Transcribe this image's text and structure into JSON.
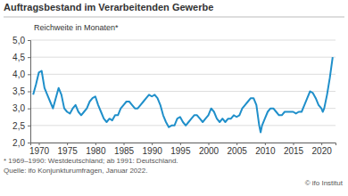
{
  "chart_data": {
    "type": "line",
    "title": "Auftragsbestand im Verarbeitenden Gewerbe",
    "y_label": "Reichweite in Monaten*",
    "annotations": [
      "* 1969–1990: Westdeutschland; ab 1991: Deutschland.",
      "Quelle: ifo Konjunkturumfragen, Januar 2022.",
      "© ifo Institut"
    ],
    "color": "#1f8fca",
    "grid": true,
    "xlim": [
      1968.5,
      2022.5
    ],
    "xticks": [
      1970,
      1975,
      1980,
      1985,
      1990,
      1995,
      2000,
      2005,
      2010,
      2015,
      2020
    ],
    "ylim": [
      2,
      5
    ],
    "yticks": [
      {
        "value": 2,
        "label": "2,0"
      },
      {
        "value": 2.5,
        "label": "2,5"
      },
      {
        "value": 3,
        "label": "3,0"
      },
      {
        "value": 3.5,
        "label": "3,5"
      },
      {
        "value": 4,
        "label": "4,0"
      },
      {
        "value": 4.5,
        "label": "4,5"
      },
      {
        "value": 5,
        "label": "5,0"
      }
    ],
    "x": [
      1969.0,
      1969.5,
      1970.0,
      1970.5,
      1971.0,
      1971.5,
      1972.0,
      1972.5,
      1973.0,
      1973.5,
      1974.0,
      1974.5,
      1975.0,
      1975.5,
      1976.0,
      1976.5,
      1977.0,
      1977.5,
      1978.0,
      1978.5,
      1979.0,
      1979.5,
      1980.0,
      1980.5,
      1981.0,
      1981.5,
      1982.0,
      1982.5,
      1983.0,
      1983.5,
      1984.0,
      1984.5,
      1985.0,
      1985.5,
      1986.0,
      1986.5,
      1987.0,
      1987.5,
      1988.0,
      1988.5,
      1989.0,
      1989.5,
      1990.0,
      1990.5,
      1991.0,
      1991.5,
      1992.0,
      1992.5,
      1993.0,
      1993.5,
      1994.0,
      1994.5,
      1995.0,
      1995.5,
      1996.0,
      1996.5,
      1997.0,
      1997.5,
      1998.0,
      1998.5,
      1999.0,
      1999.5,
      2000.0,
      2000.5,
      2001.0,
      2001.5,
      2002.0,
      2002.5,
      2003.0,
      2003.5,
      2004.0,
      2004.5,
      2005.0,
      2005.5,
      2006.0,
      2006.5,
      2007.0,
      2007.5,
      2008.0,
      2008.5,
      2009.0,
      2009.25,
      2009.5,
      2010.0,
      2010.5,
      2011.0,
      2011.5,
      2012.0,
      2012.5,
      2013.0,
      2013.5,
      2014.0,
      2014.5,
      2015.0,
      2015.5,
      2016.0,
      2016.5,
      2017.0,
      2017.5,
      2018.0,
      2018.5,
      2019.0,
      2019.5,
      2020.0,
      2020.25,
      2020.5,
      2021.0,
      2021.5,
      2021.75,
      2022.0
    ],
    "values": [
      3.4,
      3.7,
      4.05,
      4.1,
      3.6,
      3.4,
      3.2,
      3.0,
      3.3,
      3.6,
      3.4,
      3.0,
      2.9,
      2.85,
      3.0,
      3.1,
      2.9,
      2.8,
      2.9,
      3.0,
      3.2,
      3.3,
      3.35,
      3.1,
      2.9,
      2.7,
      2.6,
      2.7,
      2.65,
      2.8,
      2.8,
      3.0,
      3.1,
      3.2,
      3.2,
      3.1,
      3.0,
      3.0,
      3.1,
      3.2,
      3.3,
      3.4,
      3.35,
      3.4,
      3.3,
      3.1,
      2.8,
      2.6,
      2.45,
      2.5,
      2.5,
      2.7,
      2.75,
      2.6,
      2.5,
      2.6,
      2.7,
      2.8,
      2.8,
      2.7,
      2.6,
      2.7,
      2.8,
      3.0,
      2.9,
      2.7,
      2.6,
      2.7,
      2.6,
      2.7,
      2.7,
      2.8,
      2.75,
      2.8,
      3.0,
      3.1,
      3.2,
      3.3,
      3.3,
      3.1,
      2.5,
      2.3,
      2.5,
      2.7,
      2.9,
      3.0,
      3.0,
      2.9,
      2.8,
      2.8,
      2.9,
      2.9,
      2.9,
      2.9,
      2.85,
      2.9,
      2.9,
      3.1,
      3.3,
      3.5,
      3.45,
      3.3,
      3.1,
      3.0,
      2.9,
      3.0,
      3.4,
      3.9,
      4.2,
      4.5
    ]
  }
}
